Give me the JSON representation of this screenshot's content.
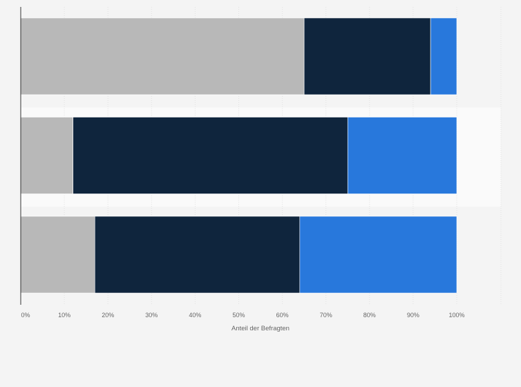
{
  "chart_data": {
    "type": "bar",
    "orientation": "horizontal",
    "stacked": true,
    "categories": [
      "",
      "",
      ""
    ],
    "series": [
      {
        "color": "#b8b8b8",
        "values": [
          65,
          12,
          17
        ]
      },
      {
        "color": "#0f253d",
        "values": [
          29,
          63,
          47
        ]
      },
      {
        "color": "#2878dc",
        "values": [
          6,
          25,
          36
        ]
      }
    ],
    "xlabel": "Anteil der Befragten",
    "ylabel": "",
    "xlim": [
      0,
      100
    ],
    "xticks": [
      "0%",
      "10%",
      "20%",
      "30%",
      "40%",
      "50%",
      "60%",
      "70%",
      "80%",
      "90%",
      "100%"
    ],
    "grid": true,
    "legend": "none"
  }
}
